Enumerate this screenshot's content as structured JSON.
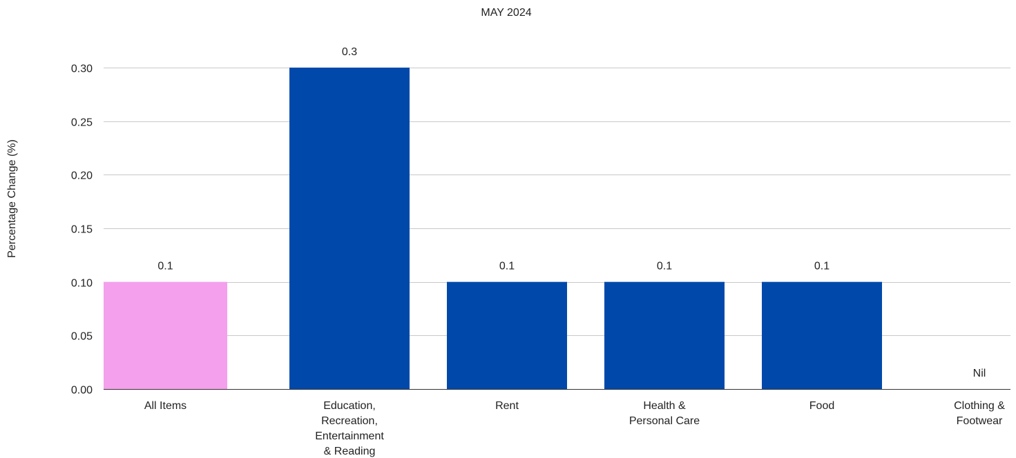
{
  "chart_data": {
    "type": "bar",
    "title": "MAY 2024",
    "xlabel": "",
    "ylabel": "Percentage Change (%)",
    "ylim": [
      0,
      0.3
    ],
    "yticks": [
      "0.00",
      "0.05",
      "0.10",
      "0.15",
      "0.20",
      "0.25",
      "0.30"
    ],
    "grid": true,
    "legend": "none",
    "categories": [
      [
        "All Items"
      ],
      [
        "Education,",
        "Recreation,",
        "Entertainment",
        "& Reading"
      ],
      [
        "Rent"
      ],
      [
        "Health &",
        "Personal Care"
      ],
      [
        "Food"
      ],
      [
        "Clothing &",
        "Footwear"
      ]
    ],
    "values": [
      0.1,
      0.3,
      0.1,
      0.1,
      0.1,
      0
    ],
    "data_labels": [
      "0.1",
      "0.3",
      "0.1",
      "0.1",
      "0.1",
      "Nil"
    ],
    "colors": [
      "#f4a0ec",
      "#0049ab",
      "#0049ab",
      "#0049ab",
      "#0049ab",
      "#0049ab"
    ]
  }
}
